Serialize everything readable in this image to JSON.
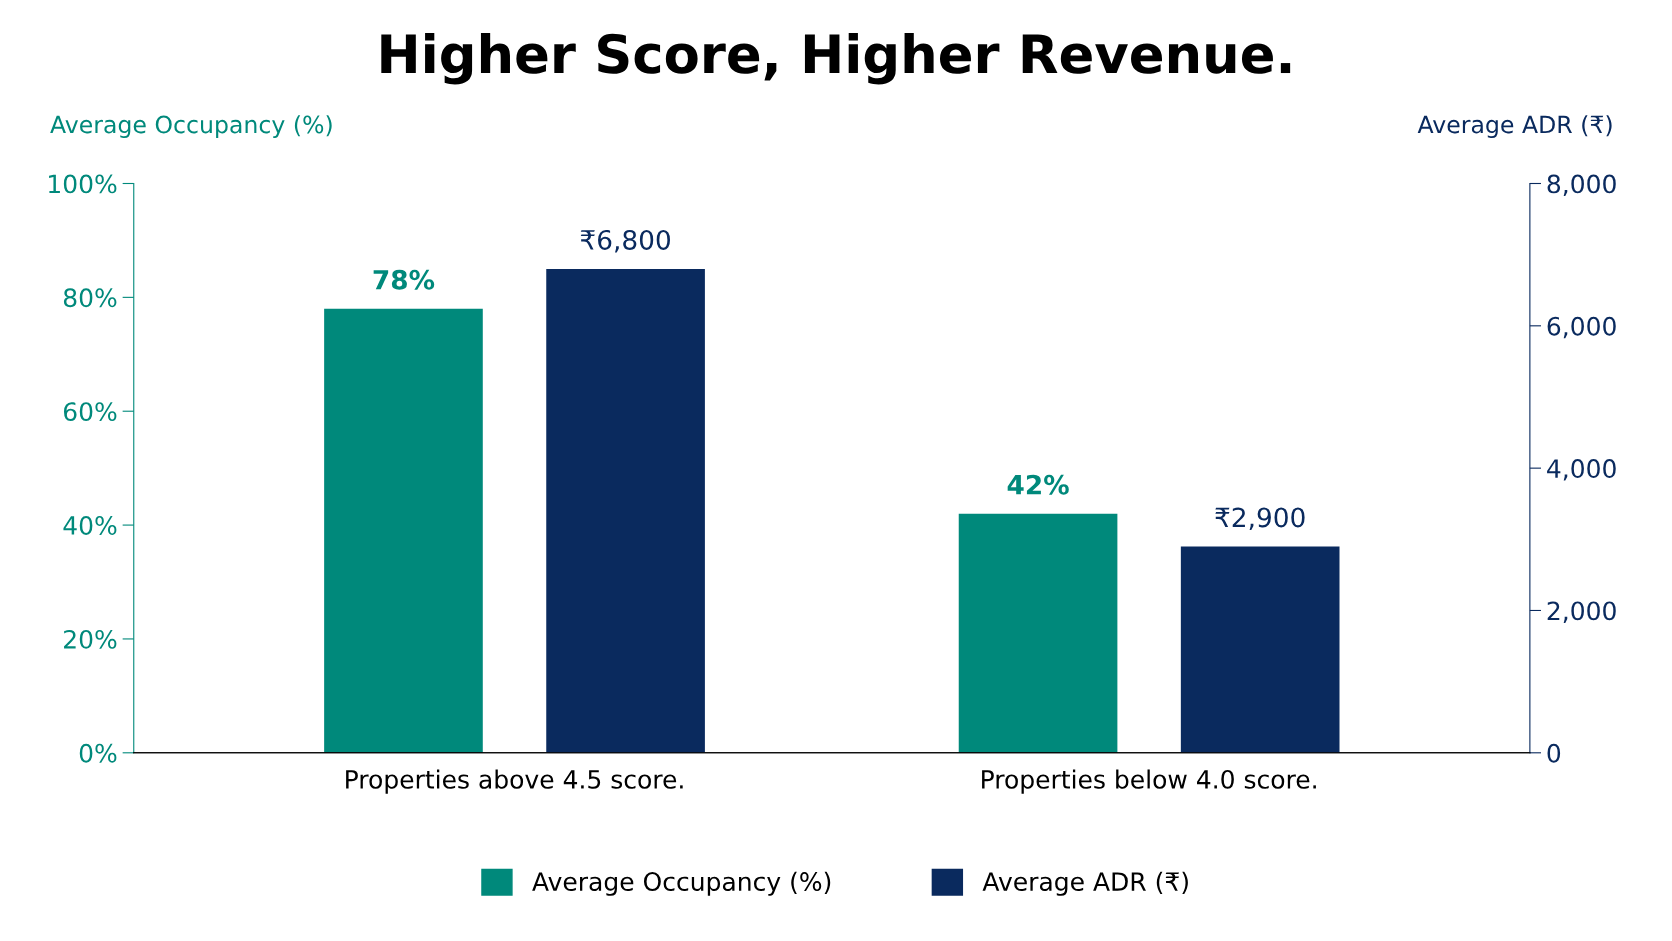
{
  "chart_data": {
    "type": "bar",
    "title": "Higher Score, Higher Revenue.",
    "categories": [
      "Properties above 4.5 score.",
      "Properties below 4.0 score."
    ],
    "ylabel": "Average Occupancy (%)",
    "y2label": "Average ADR (₹)",
    "series": [
      {
        "name": "Average Occupancy (%)",
        "color": "#00897b",
        "values": [
          78,
          42
        ],
        "value_labels": [
          "78%",
          "42%"
        ]
      },
      {
        "name": "Average ADR (₹)",
        "color": "#0a2a5e",
        "values": [
          6800,
          2900
        ],
        "value_labels": [
          "₹6,800",
          "₹2,900"
        ],
        "axis": "y2"
      }
    ],
    "ylim": [
      0,
      100
    ],
    "yticks": [
      {
        "value": 0,
        "label": "0%"
      },
      {
        "value": 20,
        "label": "20%"
      },
      {
        "value": 40,
        "label": "40%"
      },
      {
        "value": 60,
        "label": "60%"
      },
      {
        "value": 80,
        "label": "80%"
      },
      {
        "value": 100,
        "label": "100%"
      }
    ],
    "y2lim": [
      0,
      8000
    ],
    "y2ticks": [
      0,
      {
        "value": 2000,
        "label": "2,000"
      },
      {
        "value": 4000,
        "label": "4,000"
      },
      {
        "value": 6000,
        "label": "6,000"
      },
      {
        "value": 8000,
        "label": "8,000"
      }
    ],
    "grid": false,
    "legend": "bottom"
  }
}
